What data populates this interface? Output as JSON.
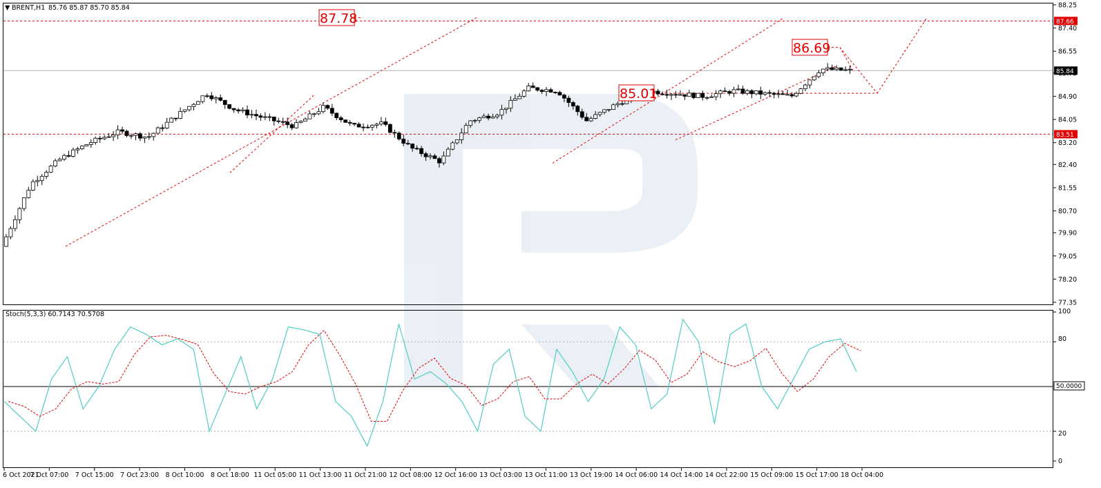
{
  "header": {
    "symbol_label": "BRENT,H1",
    "ohlc_label": "85.76 85.87 85.70 85.84"
  },
  "indicator": {
    "label": "Stoch(5,3,3) 60.7143 70.5708",
    "levels": [
      20,
      80
    ],
    "mid_level": 50,
    "mid_level_label": "50.0000",
    "range": [
      0,
      100
    ],
    "ticks": [
      "100",
      "80",
      "20",
      "0"
    ],
    "main_color": "#4ecdc4",
    "signal_color": "#e00000"
  },
  "colors": {
    "accent_red": "#e00000",
    "candle_up": "#ffffff",
    "candle_down": "#000000",
    "grid": "#c8c8c8"
  },
  "chart_data": {
    "type": "candlestick",
    "title": "",
    "ylim": [
      77.35,
      88.25
    ],
    "y_ticks": [
      "88.25",
      "87.40",
      "86.55",
      "85.75",
      "84.90",
      "84.05",
      "83.20",
      "82.40",
      "81.55",
      "80.70",
      "79.90",
      "79.05",
      "78.20",
      "77.35"
    ],
    "x_ticks": [
      "6 Oct 2021",
      "7 Oct 07:00",
      "7 Oct 15:00",
      "7 Oct 23:00",
      "8 Oct 10:00",
      "8 Oct 18:00",
      "11 Oct 05:00",
      "11 Oct 13:00",
      "11 Oct 21:00",
      "12 Oct 08:00",
      "12 Oct 16:00",
      "13 Oct 03:00",
      "13 Oct 11:00",
      "13 Oct 19:00",
      "14 Oct 06:00",
      "14 Oct 14:00",
      "14 Oct 22:00",
      "15 Oct 09:00",
      "15 Oct 17:00",
      "18 Oct 04:00"
    ],
    "current_price_label": "85.84",
    "horizontal_levels": [
      {
        "value": 87.66,
        "label": "87.66"
      },
      {
        "value": 83.51,
        "label": "83.51"
      }
    ],
    "annotations": [
      {
        "text": "87.78",
        "value": 87.78
      },
      {
        "text": "86.69",
        "value": 86.69
      },
      {
        "text": "85.01",
        "value": 85.01
      }
    ],
    "price_path": [
      79.4,
      81.7,
      82.6,
      83.2,
      83.6,
      83.4,
      84.2,
      85.0,
      84.4,
      84.1,
      83.8,
      84.5,
      83.8,
      83.9,
      83.0,
      82.5,
      84.0,
      84.3,
      85.2,
      85.1,
      84.0,
      84.6,
      85.1,
      85.0,
      84.9,
      85.1,
      85.0,
      84.9,
      85.9,
      85.84
    ],
    "forecast": [
      85.84,
      86.69,
      85.01,
      87.78
    ],
    "stoch_main": [
      40,
      30,
      20,
      55,
      70,
      35,
      50,
      75,
      90,
      85,
      78,
      82,
      75,
      20,
      45,
      70,
      35,
      55,
      90,
      88,
      85,
      40,
      30,
      10,
      40,
      92,
      55,
      60,
      52,
      40,
      20,
      65,
      75,
      30,
      20,
      75,
      60,
      40,
      55,
      90,
      78,
      35,
      45,
      95,
      80,
      25,
      85,
      92,
      50,
      35,
      55,
      75,
      80,
      82,
      60
    ]
  }
}
